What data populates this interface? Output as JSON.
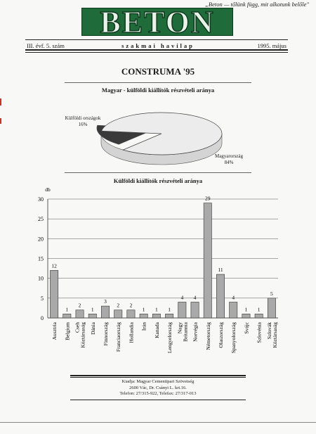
{
  "header": {
    "motto": "„Beton — tőlünk függ, mit alkotunk belőle\"",
    "logo": "BETON",
    "issue": "III. évf. 5. szám",
    "tagline": "szakmai havilap",
    "date": "1995. május"
  },
  "article": {
    "heading": "CONSTRUMA '95",
    "pie_title": "Magyar - külföldi kiállítók részvételi aránya",
    "bar_title": "Külföldi kiállítók részvételi aránya"
  },
  "footer": {
    "line1": "Kiadja: Magyar Cementipari Szövetség",
    "line2": "2600 Vác, Dr. Csányi L. krt.16.",
    "line3": "Telefon: 27/315-922, Telefax: 27/317-013"
  },
  "colors": {
    "logo_green": "#1f6b3a",
    "bar_fill": "#a9a9a9",
    "pie_dark": "#3a3a3a",
    "pie_light": "#ececec"
  },
  "chart_data": [
    {
      "type": "pie",
      "title": "Magyar - külföldi kiállítók részvételi aránya",
      "slices": [
        {
          "label": "Külföldi országok",
          "value": 16,
          "display": "16%"
        },
        {
          "label": "Magyarország",
          "value": 84,
          "display": "84%"
        }
      ]
    },
    {
      "type": "bar",
      "title": "Külföldi kiállítók részvételi aránya",
      "ylabel": "db",
      "ylim": [
        0,
        30
      ],
      "yticks": [
        0,
        5,
        10,
        15,
        20,
        25,
        30
      ],
      "grid": true,
      "categories": [
        "Ausztria",
        "Belgium",
        "Cseh Köztársaság",
        "Dánia",
        "Finnország",
        "Franciaország",
        "Hollandia",
        "Irán",
        "Kanada",
        "Lengyelország",
        "Nagy Britannia",
        "Norvégia",
        "Németország",
        "Olaszország",
        "Spanyolország",
        "Svájc",
        "Szlovénia",
        "Szlovák Köztársaság"
      ],
      "values": [
        12,
        1,
        2,
        1,
        3,
        2,
        2,
        1,
        1,
        1,
        4,
        4,
        29,
        11,
        4,
        1,
        1,
        5
      ]
    }
  ]
}
